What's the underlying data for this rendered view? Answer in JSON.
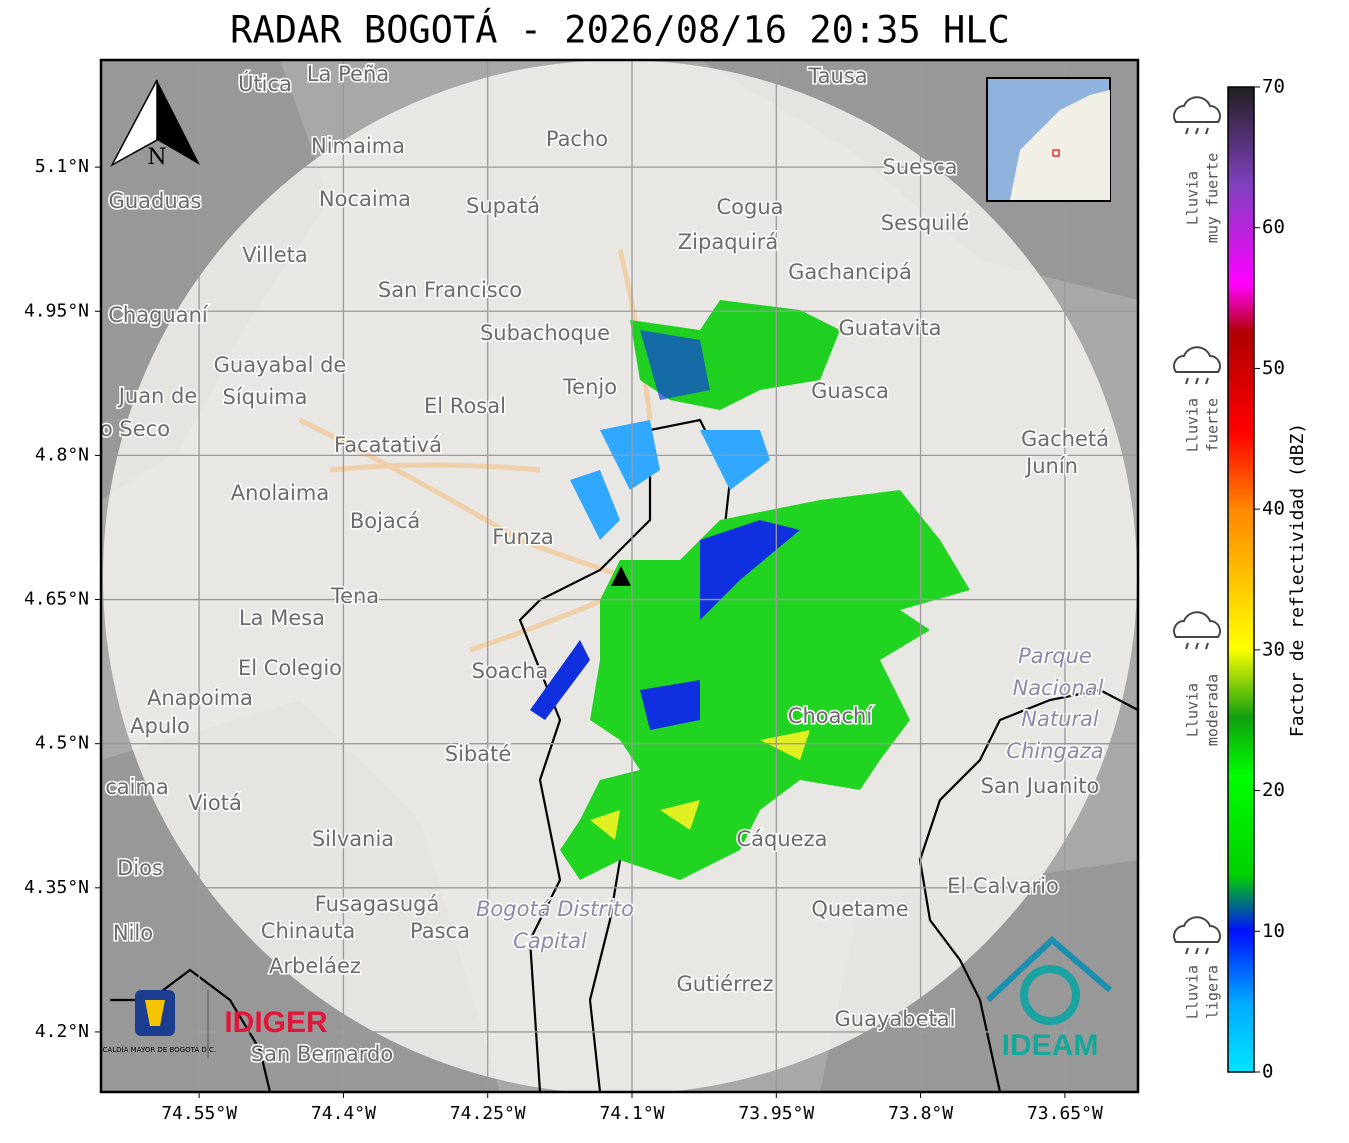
{
  "header": {
    "title": "RADAR BOGOTÁ - 2026/08/16 20:35 HLC"
  },
  "map": {
    "lon_range": [
      -74.652,
      -73.574
    ],
    "lat_range": [
      4.1375,
      5.2115
    ],
    "lon_ticks": [
      {
        "value": -74.55,
        "label": "74.55°W"
      },
      {
        "value": -74.4,
        "label": "74.4°W"
      },
      {
        "value": -74.25,
        "label": "74.25°W"
      },
      {
        "value": -74.1,
        "label": "74.1°W"
      },
      {
        "value": -73.95,
        "label": "73.95°W"
      },
      {
        "value": -73.8,
        "label": "73.8°W"
      },
      {
        "value": -73.65,
        "label": "73.65°W"
      }
    ],
    "lat_ticks": [
      {
        "value": 5.1,
        "label": "5.1°N"
      },
      {
        "value": 4.95,
        "label": "4.95°N"
      },
      {
        "value": 4.8,
        "label": "4.8°N"
      },
      {
        "value": 4.65,
        "label": "4.65°N"
      },
      {
        "value": 4.5,
        "label": "4.5°N"
      },
      {
        "value": 4.35,
        "label": "4.35°N"
      },
      {
        "value": 4.2,
        "label": "4.2°N"
      }
    ],
    "compass": "N",
    "places": [
      "La Peña",
      "Útica",
      "Tausa",
      "Pacho",
      "Nimaima",
      "Suesca",
      "Guaduas",
      "Nocaima",
      "Supatá",
      "Cogua",
      "Zipaquirá",
      "Sesquilé",
      "Villeta",
      "Gachancipá",
      "San Francisco",
      "Chaguaní",
      "Guatavita",
      "Subachoque",
      "Guayabal de",
      "Síquima",
      "Tenjo",
      "Juan de",
      "Guasca",
      "El Rosal",
      "o Seco",
      "Facatativá",
      "Gachetá",
      "Junín",
      "Anolaima",
      "Bojacá",
      "Funza",
      "Tena",
      "La Mesa",
      "Parque",
      "El Colegio",
      "Soacha",
      "Nacional",
      "Anapoima",
      "Apulo",
      "Natural",
      "Chingaza",
      "Sibaté",
      "Choachí",
      "San Juanito",
      "caima",
      "Viotá",
      "Silvania",
      "Cáqueza",
      "Dios",
      "El Calvario",
      "Fusagasugá",
      "Bogotá Distrito",
      "Capital",
      "Quetame",
      "Nilo",
      "Chinauta",
      "Pasca",
      "Arbeláez",
      "Gutiérrez",
      "Guayabetal",
      "San Bernardo"
    ]
  },
  "logos": {
    "alcaldia": "ALCALDÍA MAYOR DE BOGOTÁ D.C.",
    "idiger": "IDIGER",
    "ideam": "IDEAM"
  },
  "colorbar": {
    "label": "Factor de reflectividad (dBZ)",
    "range": [
      0,
      70
    ],
    "ticks": [
      0,
      10,
      20,
      30,
      40,
      50,
      60,
      70
    ]
  },
  "rain_legend": [
    [
      "Lluvia",
      "muy fuerte"
    ],
    [
      "Lluvia",
      "fuerte"
    ],
    [
      "Lluvia",
      "moderada"
    ],
    [
      "Lluvia",
      "ligera"
    ]
  ]
}
